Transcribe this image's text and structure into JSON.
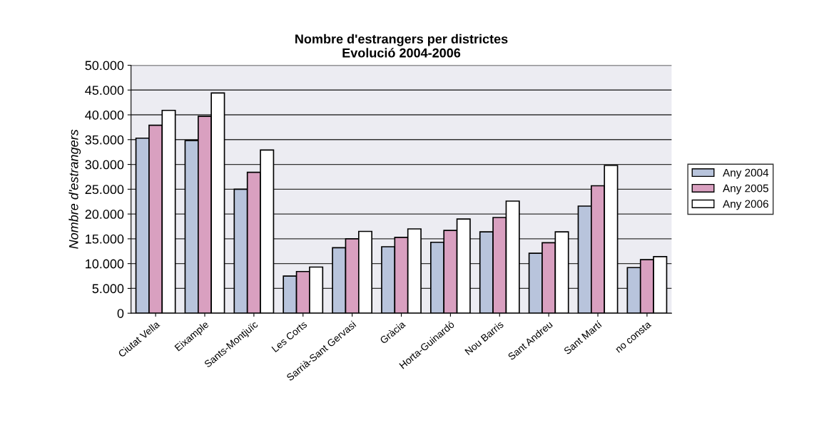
{
  "chart_data": {
    "type": "bar",
    "title": "Nombre d'estrangers per districtes\nEvolució 2004-2006",
    "ylabel": "Nombre d'estrangers",
    "categories": [
      "Ciutat Vella",
      "Eixample",
      "Sants-Montjuïc",
      "Les Corts",
      "Sarrià-Sant Gervasi",
      "Gràcia",
      "Horta-Guinardó",
      "Nou Barris",
      "Sant Andreu",
      "Sant Martí",
      "no consta"
    ],
    "series": [
      {
        "name": "Any 2004",
        "color": "#b8c4dc",
        "values": [
          35300,
          34800,
          25000,
          7500,
          13200,
          13400,
          14300,
          16400,
          12100,
          21600,
          9200
        ]
      },
      {
        "name": "Any 2005",
        "color": "#d9a0c0",
        "values": [
          37900,
          39700,
          28400,
          8400,
          15000,
          15300,
          16700,
          19300,
          14200,
          25700,
          10800
        ]
      },
      {
        "name": "Any 2006",
        "color": "#ffffff",
        "values": [
          40900,
          44400,
          32900,
          9300,
          16500,
          17000,
          19000,
          22600,
          16400,
          29800,
          11400
        ]
      }
    ],
    "ylim": [
      0,
      50000
    ],
    "yticks": [
      0,
      {
        "value": 5000,
        "label": "5.000"
      },
      {
        "value": 10000,
        "label": "10.000"
      },
      {
        "value": 15000,
        "label": "15.000"
      },
      {
        "value": 20000,
        "label": "20.000"
      },
      {
        "value": 25000,
        "label": "25.000"
      },
      {
        "value": 30000,
        "label": "30.000"
      },
      {
        "value": 35000,
        "label": "35.000"
      },
      {
        "value": 40000,
        "label": "40.000"
      },
      {
        "value": 45000,
        "label": "45.000"
      },
      {
        "value": 50000,
        "label": "50.000"
      }
    ],
    "grid": "y",
    "legend": "right"
  }
}
